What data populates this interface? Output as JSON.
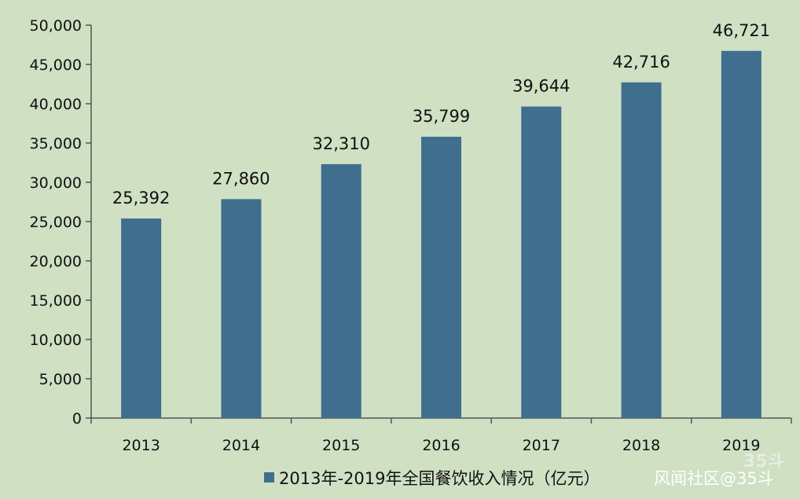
{
  "chart_data": {
    "type": "bar",
    "categories": [
      "2013",
      "2014",
      "2015",
      "2016",
      "2017",
      "2018",
      "2019"
    ],
    "series": [
      {
        "name": "2013年-2019年全国餐饮收入情况（亿元）",
        "values": [
          25392,
          27860,
          32310,
          35799,
          39644,
          42716,
          46721
        ],
        "data_labels": [
          "25,392",
          "27,860",
          "32,310",
          "35,799",
          "39,644",
          "42,716",
          "46,721"
        ]
      }
    ],
    "y_ticks": [
      0,
      5000,
      10000,
      15000,
      20000,
      25000,
      30000,
      35000,
      40000,
      45000,
      50000
    ],
    "y_tick_labels": [
      "0",
      "5,000",
      "10,000",
      "15,000",
      "20,000",
      "25,000",
      "30,000",
      "35,000",
      "40,000",
      "45,000",
      "50,000"
    ],
    "ylim": [
      0,
      50000
    ],
    "grid": false,
    "legend_position": "bottom",
    "bar_color": "#3f6e8f",
    "background_color": "#cfe0c3"
  },
  "watermark": {
    "text": "风闻社区@35斗",
    "corner_mark": "35斗"
  }
}
